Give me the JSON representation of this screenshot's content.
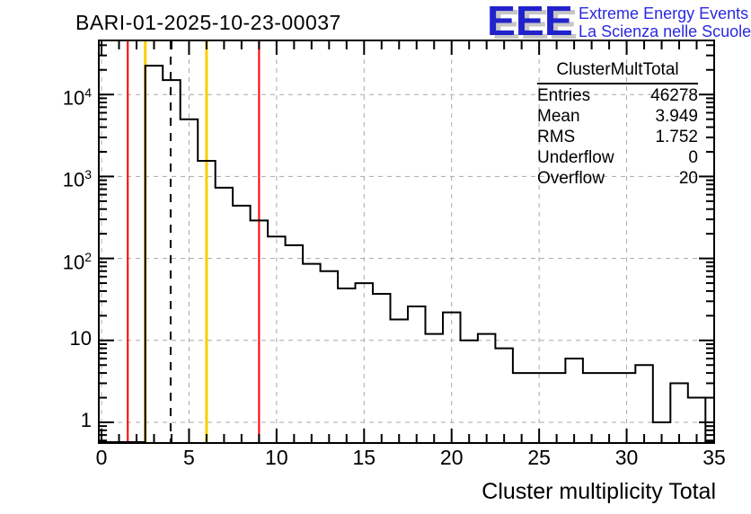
{
  "header": {
    "title": "BARI-01-2025-10-23-00037"
  },
  "logo": {
    "acronym": "EEE",
    "line1": "Extreme Energy Events",
    "line2": "La Scienza nelle Scuole",
    "blue": "#2222cc",
    "shadow_gray": "#c6c6c6"
  },
  "stats": {
    "title": "ClusterMultTotal",
    "rows": [
      {
        "label": "Entries",
        "value": "46278"
      },
      {
        "label": "Mean",
        "value": "3.949"
      },
      {
        "label": "RMS",
        "value": "1.752"
      },
      {
        "label": "Underflow",
        "value": "0"
      },
      {
        "label": "Overflow",
        "value": "20"
      }
    ]
  },
  "chart_data": {
    "type": "bar",
    "subtype": "step-histogram-outline",
    "title": "BARI-01-2025-10-23-00037",
    "xlabel": "Cluster multiplicity Total",
    "ylabel": "",
    "yscale": "log",
    "xlim": [
      0,
      35
    ],
    "ylim": [
      0.56,
      44000
    ],
    "grid": true,
    "bin_width": 1,
    "bin_centers": [
      3,
      4,
      5,
      6,
      7,
      8,
      9,
      10,
      11,
      12,
      13,
      14,
      15,
      16,
      17,
      18,
      19,
      20,
      21,
      22,
      23,
      24,
      25,
      26,
      27,
      28,
      29,
      30,
      31,
      32,
      33,
      34
    ],
    "values": [
      22500,
      15000,
      5000,
      1550,
      730,
      440,
      290,
      185,
      145,
      86,
      70,
      43,
      50,
      37,
      18,
      26,
      12,
      22,
      10,
      12,
      8,
      4,
      4,
      4,
      6,
      4,
      4,
      4,
      5,
      1,
      3,
      2
    ],
    "x_major_ticks": [
      0,
      5,
      10,
      15,
      20,
      25,
      30,
      35
    ],
    "y_major_ticks": [
      1,
      10,
      100,
      1000,
      10000
    ],
    "entries": 46278,
    "mean": 3.949,
    "rms": 1.752,
    "underflow": 0,
    "overflow": 20,
    "line_color": "#000000",
    "grid_color": "#a8a8a8",
    "markers": [
      {
        "x": 1.5,
        "color": "#ff0000",
        "style": "solid",
        "width": 2,
        "name": "red-lower-limit-line"
      },
      {
        "x": 2.5,
        "color": "#ffcc00",
        "style": "solid",
        "width": 3,
        "name": "yellow-lower-limit-line"
      },
      {
        "x": 3.949,
        "color": "#000000",
        "style": "dashed",
        "width": 2,
        "name": "mean-dashed-line"
      },
      {
        "x": 6,
        "color": "#ffcc00",
        "style": "solid",
        "width": 3,
        "name": "yellow-upper-limit-line"
      },
      {
        "x": 9,
        "color": "#ff0000",
        "style": "solid",
        "width": 2,
        "name": "red-upper-limit-line"
      }
    ]
  },
  "axes": {
    "x_tick_labels": [
      "0",
      "5",
      "10",
      "15",
      "20",
      "25",
      "30",
      "35"
    ],
    "y_tick_labels": [
      {
        "base": "1",
        "exp": ""
      },
      {
        "base": "10",
        "exp": ""
      },
      {
        "base": "10",
        "exp": "2"
      },
      {
        "base": "10",
        "exp": "3"
      },
      {
        "base": "10",
        "exp": "4"
      }
    ]
  }
}
